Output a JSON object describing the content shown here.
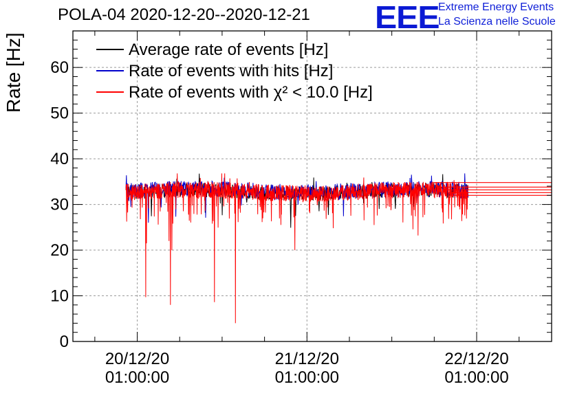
{
  "header": {
    "title": "POLA-04 2020-12-20--2020-12-21",
    "logo_text": "EEE",
    "brand_line1": "Extreme Energy Events",
    "brand_line2": "La Scienza nelle Scuole"
  },
  "colors": {
    "average": "#000000",
    "hits": "#0000cc",
    "chi2": "#ff0000",
    "grid": "#9a9a9a",
    "logo": "#0b1ad4"
  },
  "chart_data": {
    "type": "line",
    "ylabel": "Rate [Hz]",
    "ylim": [
      0,
      68
    ],
    "yticks": [
      0,
      10,
      20,
      30,
      40,
      50,
      60
    ],
    "xlim_hours": [
      -9.1,
      58.6
    ],
    "xticks": [
      {
        "hours": 0,
        "label1": "20/12/20",
        "label2": "01:00:00"
      },
      {
        "hours": 24,
        "label1": "21/12/20",
        "label2": "01:00:00"
      },
      {
        "hours": 48,
        "label1": "22/12/20",
        "label2": "01:00:00"
      }
    ],
    "grid": true,
    "legend_position": "top-left",
    "series": [
      {
        "name": "Average rate of events [Hz]",
        "key": "average",
        "approx_level": 32.8,
        "x_range_hours": [
          -1.6,
          46.8
        ]
      },
      {
        "name": "Rate of events with hits [Hz]",
        "key": "hits",
        "approx_level": 33.0,
        "x_range_hours": [
          -1.6,
          46.8
        ]
      },
      {
        "name": "Rate of events with χ² < 10.0 [Hz]",
        "key": "chi2",
        "approx_level": 32.8,
        "x_range_hours": [
          -1.6,
          46.8
        ]
      }
    ],
    "chi2_dips": [
      {
        "hours": 1.2,
        "value": 9.7
      },
      {
        "hours": 1.3,
        "value": 21.5
      },
      {
        "hours": 4.5,
        "value": 22.0
      },
      {
        "hours": 4.7,
        "value": 8.0
      },
      {
        "hours": 4.9,
        "value": 20.0
      },
      {
        "hours": 10.9,
        "value": 8.6
      },
      {
        "hours": 10.6,
        "value": 25.8
      },
      {
        "hours": 13.9,
        "value": 4.0
      },
      {
        "hours": 13.8,
        "value": 28.0
      },
      {
        "hours": 22.3,
        "value": 20.0
      },
      {
        "hours": 33.5,
        "value": 25.5
      },
      {
        "hours": 39.7,
        "value": 23.2
      },
      {
        "hours": 46.3,
        "value": 27.6
      }
    ],
    "spike_max": 36.8,
    "tail_lines": [
      34.8,
      33.8,
      33.2,
      32.6,
      32.0
    ]
  }
}
